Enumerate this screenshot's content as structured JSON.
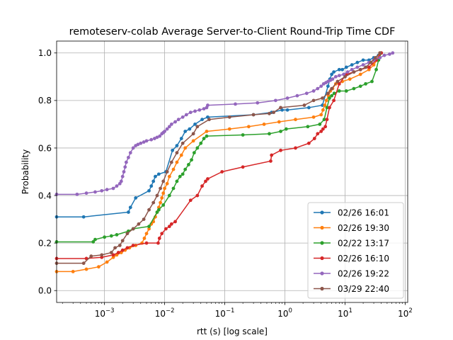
{
  "chart_data": {
    "type": "line",
    "title": "remoteserv-colab Average Server-to-Client Round-Trip Time CDF",
    "xlabel": "rtt (s) [log scale]",
    "ylabel": "Probability",
    "xscale": "log",
    "xlim": [
      0.00016,
      110
    ],
    "ylim": [
      -0.05,
      1.05
    ],
    "grid": true,
    "legend_position": "lower right",
    "x_ticks": [
      {
        "value": 0.001,
        "base": "10",
        "exp": "−3"
      },
      {
        "value": 0.01,
        "base": "10",
        "exp": "−2"
      },
      {
        "value": 0.1,
        "base": "10",
        "exp": "−1"
      },
      {
        "value": 1,
        "base": "10",
        "exp": "0"
      },
      {
        "value": 10,
        "base": "10",
        "exp": "1"
      },
      {
        "value": 100,
        "base": "10",
        "exp": "2"
      }
    ],
    "y_ticks": [
      {
        "value": 0.0,
        "label": "0.0"
      },
      {
        "value": 0.2,
        "label": "0.2"
      },
      {
        "value": 0.4,
        "label": "0.4"
      },
      {
        "value": 0.6,
        "label": "0.6"
      },
      {
        "value": 0.8,
        "label": "0.8"
      },
      {
        "value": 1.0,
        "label": "1.0"
      }
    ],
    "series": [
      {
        "name": "02/26 16:01",
        "color": "#1f77b4",
        "x": [
          0.00016,
          0.00045,
          0.0025,
          0.0027,
          0.0033,
          0.0055,
          0.006,
          0.0065,
          0.007,
          0.008,
          0.0105,
          0.0135,
          0.016,
          0.019,
          0.022,
          0.026,
          0.032,
          0.042,
          0.052,
          0.3,
          0.6,
          0.9,
          1.1,
          2.5,
          4.2,
          5.2,
          5.6,
          6.0,
          6.5,
          8.0,
          9.0,
          10.5,
          13,
          16,
          20,
          25,
          30,
          36,
          40
        ],
        "y": [
          0.31,
          0.31,
          0.33,
          0.35,
          0.39,
          0.42,
          0.44,
          0.46,
          0.48,
          0.49,
          0.5,
          0.59,
          0.61,
          0.64,
          0.67,
          0.68,
          0.7,
          0.72,
          0.73,
          0.74,
          0.75,
          0.76,
          0.76,
          0.77,
          0.78,
          0.86,
          0.89,
          0.91,
          0.92,
          0.93,
          0.93,
          0.94,
          0.95,
          0.96,
          0.97,
          0.97,
          0.98,
          0.99,
          1.0
        ]
      },
      {
        "name": "02/26 19:30",
        "color": "#ff7f0e",
        "x": [
          0.00016,
          0.0003,
          0.0005,
          0.0008,
          0.0011,
          0.0014,
          0.0016,
          0.0019,
          0.0022,
          0.0026,
          0.0033,
          0.0042,
          0.0046,
          0.005,
          0.0055,
          0.006,
          0.0065,
          0.007,
          0.0075,
          0.008,
          0.0085,
          0.009,
          0.0095,
          0.01,
          0.011,
          0.012,
          0.014,
          0.016,
          0.019,
          0.022,
          0.03,
          0.05,
          0.12,
          0.25,
          0.45,
          0.8,
          1.5,
          3.0,
          4.0,
          4.3,
          4.6,
          4.9,
          5.3,
          5.7,
          6.2,
          7.0,
          9.0,
          12,
          18,
          25,
          30,
          34,
          38
        ],
        "y": [
          0.08,
          0.08,
          0.09,
          0.1,
          0.12,
          0.14,
          0.15,
          0.16,
          0.17,
          0.18,
          0.19,
          0.2,
          0.22,
          0.24,
          0.26,
          0.28,
          0.29,
          0.31,
          0.33,
          0.35,
          0.37,
          0.39,
          0.41,
          0.43,
          0.45,
          0.48,
          0.51,
          0.54,
          0.57,
          0.6,
          0.63,
          0.67,
          0.68,
          0.69,
          0.7,
          0.71,
          0.72,
          0.73,
          0.74,
          0.76,
          0.78,
          0.8,
          0.82,
          0.84,
          0.85,
          0.87,
          0.88,
          0.89,
          0.91,
          0.93,
          0.95,
          0.97,
          1.0
        ]
      },
      {
        "name": "02/22 13:17",
        "color": "#2ca02c",
        "x": [
          0.00016,
          0.00065,
          0.0007,
          0.001,
          0.0013,
          0.0016,
          0.0025,
          0.003,
          0.0055,
          0.0075,
          0.008,
          0.0095,
          0.012,
          0.014,
          0.016,
          0.018,
          0.02,
          0.022,
          0.025,
          0.028,
          0.031,
          0.035,
          0.04,
          0.045,
          0.05,
          0.2,
          0.55,
          0.85,
          1.05,
          2.4,
          3.8,
          4.5,
          5.0,
          5.5,
          6.0,
          6.6,
          8.0,
          10.5,
          14,
          18,
          22,
          28,
          33,
          36,
          40
        ],
        "y": [
          0.205,
          0.205,
          0.215,
          0.225,
          0.23,
          0.235,
          0.25,
          0.26,
          0.27,
          0.33,
          0.34,
          0.36,
          0.4,
          0.43,
          0.46,
          0.48,
          0.49,
          0.51,
          0.53,
          0.55,
          0.58,
          0.6,
          0.62,
          0.64,
          0.65,
          0.655,
          0.66,
          0.67,
          0.68,
          0.69,
          0.7,
          0.72,
          0.77,
          0.81,
          0.82,
          0.83,
          0.84,
          0.84,
          0.85,
          0.86,
          0.87,
          0.88,
          0.93,
          0.97,
          1.0
        ]
      },
      {
        "name": "02/26 16:10",
        "color": "#d62728",
        "x": [
          0.00016,
          0.0005,
          0.0009,
          0.0014,
          0.0017,
          0.002,
          0.0024,
          0.003,
          0.005,
          0.0078,
          0.0082,
          0.009,
          0.0105,
          0.012,
          0.013,
          0.015,
          0.027,
          0.035,
          0.042,
          0.048,
          0.052,
          0.09,
          0.2,
          0.58,
          0.6,
          0.85,
          1.5,
          2.5,
          3.1,
          3.5,
          4.0,
          4.3,
          4.7,
          5.0,
          5.5,
          6.5,
          8.0,
          10.5,
          14,
          18,
          25,
          33,
          40
        ],
        "y": [
          0.135,
          0.135,
          0.14,
          0.15,
          0.16,
          0.17,
          0.18,
          0.19,
          0.2,
          0.2,
          0.22,
          0.24,
          0.26,
          0.27,
          0.28,
          0.29,
          0.38,
          0.4,
          0.44,
          0.46,
          0.47,
          0.5,
          0.52,
          0.545,
          0.57,
          0.59,
          0.6,
          0.62,
          0.64,
          0.66,
          0.67,
          0.68,
          0.69,
          0.72,
          0.77,
          0.8,
          0.87,
          0.91,
          0.92,
          0.93,
          0.94,
          0.97,
          1.0
        ]
      },
      {
        "name": "02/26 19:22",
        "color": "#9467bd",
        "x": [
          0.00016,
          0.00035,
          0.0005,
          0.0007,
          0.0009,
          0.0011,
          0.0014,
          0.0016,
          0.0018,
          0.0019,
          0.002,
          0.0021,
          0.0022,
          0.0023,
          0.0025,
          0.0027,
          0.003,
          0.0033,
          0.0036,
          0.004,
          0.0045,
          0.005,
          0.006,
          0.0068,
          0.0075,
          0.0083,
          0.009,
          0.0095,
          0.01,
          0.011,
          0.012,
          0.013,
          0.015,
          0.017,
          0.02,
          0.023,
          0.027,
          0.032,
          0.038,
          0.045,
          0.05,
          0.052,
          0.15,
          0.35,
          0.7,
          1.1,
          1.6,
          2.3,
          3.0,
          3.5,
          4.0,
          4.4,
          4.8,
          5.2,
          5.7,
          6.2,
          7.0,
          8.0,
          9.5,
          11,
          13,
          16,
          20,
          25,
          30,
          38,
          45,
          55,
          62
        ],
        "y": [
          0.405,
          0.405,
          0.41,
          0.415,
          0.42,
          0.425,
          0.43,
          0.44,
          0.45,
          0.46,
          0.48,
          0.5,
          0.52,
          0.54,
          0.56,
          0.58,
          0.6,
          0.61,
          0.615,
          0.62,
          0.625,
          0.63,
          0.635,
          0.64,
          0.645,
          0.65,
          0.66,
          0.665,
          0.67,
          0.68,
          0.69,
          0.7,
          0.71,
          0.72,
          0.73,
          0.74,
          0.75,
          0.755,
          0.76,
          0.765,
          0.77,
          0.78,
          0.785,
          0.79,
          0.8,
          0.81,
          0.82,
          0.83,
          0.84,
          0.85,
          0.86,
          0.87,
          0.875,
          0.88,
          0.885,
          0.89,
          0.9,
          0.905,
          0.91,
          0.92,
          0.93,
          0.94,
          0.95,
          0.96,
          0.97,
          0.98,
          0.99,
          0.995,
          1.0
        ]
      },
      {
        "name": "03/29 22:40",
        "color": "#8c564b",
        "x": [
          0.00016,
          0.00045,
          0.0006,
          0.0009,
          0.0013,
          0.0015,
          0.0018,
          0.002,
          0.0024,
          0.003,
          0.0037,
          0.0045,
          0.0055,
          0.0065,
          0.0075,
          0.0085,
          0.0095,
          0.011,
          0.013,
          0.016,
          0.02,
          0.03,
          0.035,
          0.055,
          0.12,
          0.3,
          0.55,
          0.65,
          0.85,
          2.1,
          3.0,
          4.2,
          5.2,
          6.0,
          7.5,
          10,
          14,
          18,
          22,
          27,
          32,
          38
        ],
        "y": [
          0.115,
          0.115,
          0.145,
          0.15,
          0.16,
          0.18,
          0.19,
          0.21,
          0.24,
          0.26,
          0.28,
          0.3,
          0.34,
          0.37,
          0.4,
          0.43,
          0.46,
          0.5,
          0.54,
          0.58,
          0.62,
          0.66,
          0.69,
          0.72,
          0.73,
          0.74,
          0.745,
          0.75,
          0.77,
          0.78,
          0.8,
          0.81,
          0.83,
          0.85,
          0.88,
          0.9,
          0.92,
          0.93,
          0.94,
          0.96,
          0.98,
          1.0
        ]
      }
    ]
  }
}
